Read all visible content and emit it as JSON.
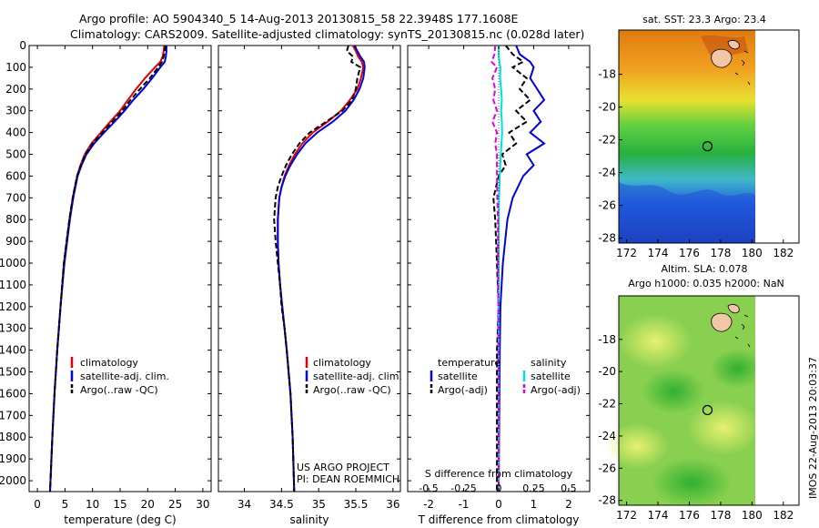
{
  "header": {
    "line1": "Argo profile: AO 5904340_5 14-Aug-2013 20130815_58 22.3948S 177.1608E",
    "line2": "Climatology: CARS2009. Satellite-adjusted climatology: synTS_20130815.nc (0.028d later)"
  },
  "depth_axis": {
    "ticks": [
      0,
      100,
      200,
      300,
      400,
      500,
      600,
      700,
      800,
      900,
      1000,
      1100,
      1200,
      1300,
      1400,
      1500,
      1600,
      1700,
      1800,
      1900,
      2000
    ],
    "ylim": [
      2050,
      0
    ]
  },
  "colors": {
    "climatology": "#e00000",
    "satellite": "#0000e0",
    "argo": "#000000",
    "sat_salinity": "#00e0e0",
    "argo_salinity": "#e000e0",
    "land": "#f2c7a8",
    "float_marker": "#000000"
  },
  "chart_data": [
    {
      "type": "line",
      "name": "temperature-profile",
      "xlabel": "temperature (deg C)",
      "ylabel": "",
      "xlim": [
        -1.5,
        31.5
      ],
      "xticks": [
        0,
        5,
        10,
        15,
        20,
        25,
        30
      ],
      "legend": [
        "climatology",
        "satellite-adj. clim.",
        "Argo(..raw -QC)"
      ],
      "legend_position": "lower-center",
      "series": [
        {
          "name": "climatology",
          "color": "#e00000",
          "depth": [
            0,
            25,
            50,
            75,
            100,
            150,
            200,
            250,
            300,
            350,
            400,
            450,
            500,
            550,
            600,
            700,
            800,
            1000,
            1200,
            1400,
            1600,
            1800,
            2050
          ],
          "values": [
            23.0,
            22.9,
            22.7,
            22.3,
            21.3,
            19.5,
            17.9,
            16.4,
            15.0,
            13.2,
            11.5,
            9.8,
            8.6,
            7.8,
            7.2,
            6.4,
            5.8,
            4.8,
            4.2,
            3.6,
            3.1,
            2.7,
            2.3
          ]
        },
        {
          "name": "satellite-adj. clim.",
          "color": "#0000e0",
          "depth": [
            0,
            25,
            50,
            75,
            100,
            150,
            200,
            250,
            300,
            350,
            400,
            450,
            500,
            550,
            600,
            700,
            800,
            1000,
            1200,
            1400,
            1600,
            1800,
            2050
          ],
          "values": [
            23.4,
            23.4,
            23.3,
            23.1,
            22.3,
            20.8,
            19.2,
            17.4,
            15.8,
            14.0,
            12.1,
            10.3,
            8.9,
            8.0,
            7.3,
            6.5,
            5.9,
            4.9,
            4.2,
            3.6,
            3.1,
            2.7,
            2.3
          ]
        },
        {
          "name": "Argo(..raw -QC)",
          "color": "#000000",
          "depth": [
            0,
            25,
            50,
            75,
            100,
            150,
            200,
            250,
            300,
            350,
            400,
            450,
            500,
            550,
            600,
            700,
            800,
            1000,
            1200,
            1400,
            1600,
            1800,
            2050
          ],
          "values": [
            23.2,
            23.1,
            22.9,
            22.6,
            21.9,
            20.4,
            18.6,
            16.9,
            15.4,
            13.6,
            11.8,
            10.0,
            8.7,
            7.9,
            7.2,
            6.4,
            5.8,
            4.8,
            4.2,
            3.6,
            3.1,
            2.7,
            2.3
          ]
        }
      ]
    },
    {
      "type": "line",
      "name": "salinity-profile",
      "xlabel": "salinity",
      "xlim": [
        33.65,
        36.1
      ],
      "xticks": [
        34,
        34.5,
        35,
        35.5,
        36
      ],
      "legend": [
        "climatology",
        "satellite-adj. clim.",
        "Argo(..raw -QC)"
      ],
      "annotation": [
        "US ARGO PROJECT",
        "PI: DEAN ROEMMICH"
      ],
      "series": [
        {
          "name": "climatology",
          "color": "#e00000",
          "depth": [
            0,
            25,
            50,
            75,
            100,
            150,
            200,
            250,
            300,
            350,
            400,
            450,
            500,
            550,
            600,
            650,
            700,
            800,
            900,
            1000,
            1100,
            1200,
            1300,
            1400,
            1600,
            1800,
            2050
          ],
          "values": [
            35.46,
            35.5,
            35.53,
            35.58,
            35.6,
            35.57,
            35.52,
            35.42,
            35.3,
            35.12,
            34.92,
            34.78,
            34.68,
            34.6,
            34.54,
            34.5,
            34.47,
            34.45,
            34.45,
            34.46,
            34.48,
            34.51,
            34.54,
            34.57,
            34.62,
            34.65,
            34.67
          ]
        },
        {
          "name": "satellite-adj. clim.",
          "color": "#0000e0",
          "depth": [
            0,
            25,
            50,
            75,
            100,
            150,
            200,
            250,
            300,
            350,
            400,
            450,
            500,
            550,
            600,
            650,
            700,
            800,
            900,
            1000,
            1100,
            1200,
            1300,
            1400,
            1600,
            1800,
            2050
          ],
          "values": [
            35.48,
            35.52,
            35.56,
            35.61,
            35.62,
            35.6,
            35.55,
            35.47,
            35.36,
            35.19,
            34.98,
            34.82,
            34.71,
            34.62,
            34.55,
            34.5,
            34.47,
            34.45,
            34.45,
            34.46,
            34.48,
            34.51,
            34.54,
            34.57,
            34.62,
            34.65,
            34.67
          ]
        },
        {
          "name": "Argo(..raw -QC)",
          "color": "#000000",
          "depth": [
            0,
            25,
            50,
            75,
            100,
            150,
            200,
            250,
            300,
            350,
            400,
            450,
            500,
            550,
            600,
            650,
            700,
            800,
            900,
            1000,
            1100,
            1200,
            1300,
            1400,
            1600,
            1800,
            2050
          ],
          "values": [
            35.4,
            35.38,
            35.46,
            35.44,
            35.56,
            35.52,
            35.5,
            35.45,
            35.32,
            35.1,
            34.88,
            34.74,
            34.64,
            34.56,
            34.5,
            34.45,
            34.42,
            34.4,
            34.42,
            34.45,
            34.48,
            34.5,
            34.54,
            34.57,
            34.62,
            34.65,
            34.67
          ]
        }
      ]
    },
    {
      "type": "line",
      "name": "difference-profile",
      "xlabel_top": "S difference from climatology",
      "xlabel": "T difference from climatology",
      "xlim": [
        -2.6,
        2.6
      ],
      "xticks": [
        -2,
        -1,
        0,
        1,
        2
      ],
      "s_ticks": [
        -0.5,
        -0.25,
        0,
        0.25,
        0.5
      ],
      "s_tick_labels": [
        "-0.5",
        "-0.25",
        "0",
        "0.25",
        "0.5"
      ],
      "legend_left_title": "temperature",
      "legend_right_title": "salinity",
      "legend": [
        "satellite",
        "Argo(-adj)",
        "satellite",
        "Argo(-adj)"
      ],
      "series": [
        {
          "name": "satellite",
          "quantity": "temperature",
          "color": "#0000e0",
          "depth": [
            0,
            40,
            75,
            100,
            150,
            200,
            250,
            300,
            350,
            400,
            450,
            500,
            550,
            600,
            700,
            800,
            1000,
            1200,
            1400,
            1600,
            1800,
            2050
          ],
          "values": [
            0.5,
            0.6,
            0.9,
            1.0,
            0.9,
            1.1,
            1.3,
            1.0,
            1.2,
            0.9,
            1.3,
            0.8,
            1.0,
            0.7,
            0.4,
            0.25,
            0.12,
            0.05,
            0.03,
            0.02,
            0.01,
            0.0
          ]
        },
        {
          "name": "Argo(-adj)",
          "quantity": "temperature",
          "color": "#000000",
          "depth": [
            0,
            40,
            75,
            100,
            150,
            200,
            250,
            300,
            350,
            400,
            450,
            500,
            550,
            600,
            700,
            800,
            1000,
            1200,
            1400,
            1600,
            1800,
            2050
          ],
          "values": [
            0.2,
            0.4,
            0.7,
            0.4,
            0.8,
            0.6,
            0.9,
            0.5,
            0.8,
            0.3,
            0.5,
            0.1,
            0.2,
            0.0,
            -0.15,
            -0.1,
            -0.05,
            0.0,
            -0.05,
            -0.05,
            -0.05,
            -0.05
          ]
        },
        {
          "name": "satellite",
          "quantity": "salinity",
          "color": "#00e0e0",
          "depth": [
            0,
            40,
            75,
            100,
            150,
            200,
            250,
            300,
            350,
            400,
            450,
            500,
            600,
            700,
            800,
            1000,
            1200,
            1400,
            1600,
            1800,
            2050
          ],
          "values": [
            0.0,
            0.0,
            0.02,
            0.05,
            0.04,
            0.07,
            0.09,
            0.07,
            0.09,
            0.1,
            0.08,
            0.06,
            0.03,
            0.01,
            0.0,
            0.0,
            0.0,
            0.0,
            0.0,
            0.0,
            0.0
          ]
        },
        {
          "name": "Argo(-adj)",
          "quantity": "salinity",
          "color": "#e000e0",
          "depth": [
            0,
            40,
            75,
            100,
            150,
            200,
            250,
            300,
            350,
            400,
            450,
            500,
            600,
            700,
            800,
            1000,
            1200,
            1400,
            1600,
            1800,
            2050
          ],
          "values": [
            -0.1,
            -0.12,
            -0.2,
            -0.05,
            -0.18,
            -0.1,
            -0.15,
            -0.05,
            -0.18,
            -0.05,
            -0.1,
            -0.05,
            -0.05,
            -0.04,
            -0.02,
            -0.02,
            -0.01,
            -0.01,
            0.0,
            0.0,
            0.0
          ]
        }
      ]
    },
    {
      "type": "heatmap",
      "name": "sst-map",
      "title": "sat. SST: 23.3 Argo: 23.4",
      "xlim": [
        171.5,
        183
      ],
      "ylim": [
        -28.3,
        -15.3
      ],
      "xticks": [
        172,
        174,
        176,
        178,
        180,
        182
      ],
      "yticks": [
        -18,
        -20,
        -22,
        -24,
        -26,
        -28
      ],
      "float_position": [
        177.16,
        -22.39
      ]
    },
    {
      "type": "heatmap",
      "name": "sla-map",
      "title": "Altim. SLA: 0.078",
      "subtitle": "Argo h1000: 0.035 h2000: NaN",
      "xlim": [
        171.5,
        183
      ],
      "ylim": [
        -28.3,
        -15.3
      ],
      "xticks": [
        172,
        174,
        176,
        178,
        180,
        182
      ],
      "yticks": [
        -18,
        -20,
        -22,
        -24,
        -26,
        -28
      ],
      "float_position": [
        177.16,
        -22.39
      ]
    }
  ],
  "footer": {
    "stamp": "IMOS 22-Aug-2013 20:03:37"
  }
}
